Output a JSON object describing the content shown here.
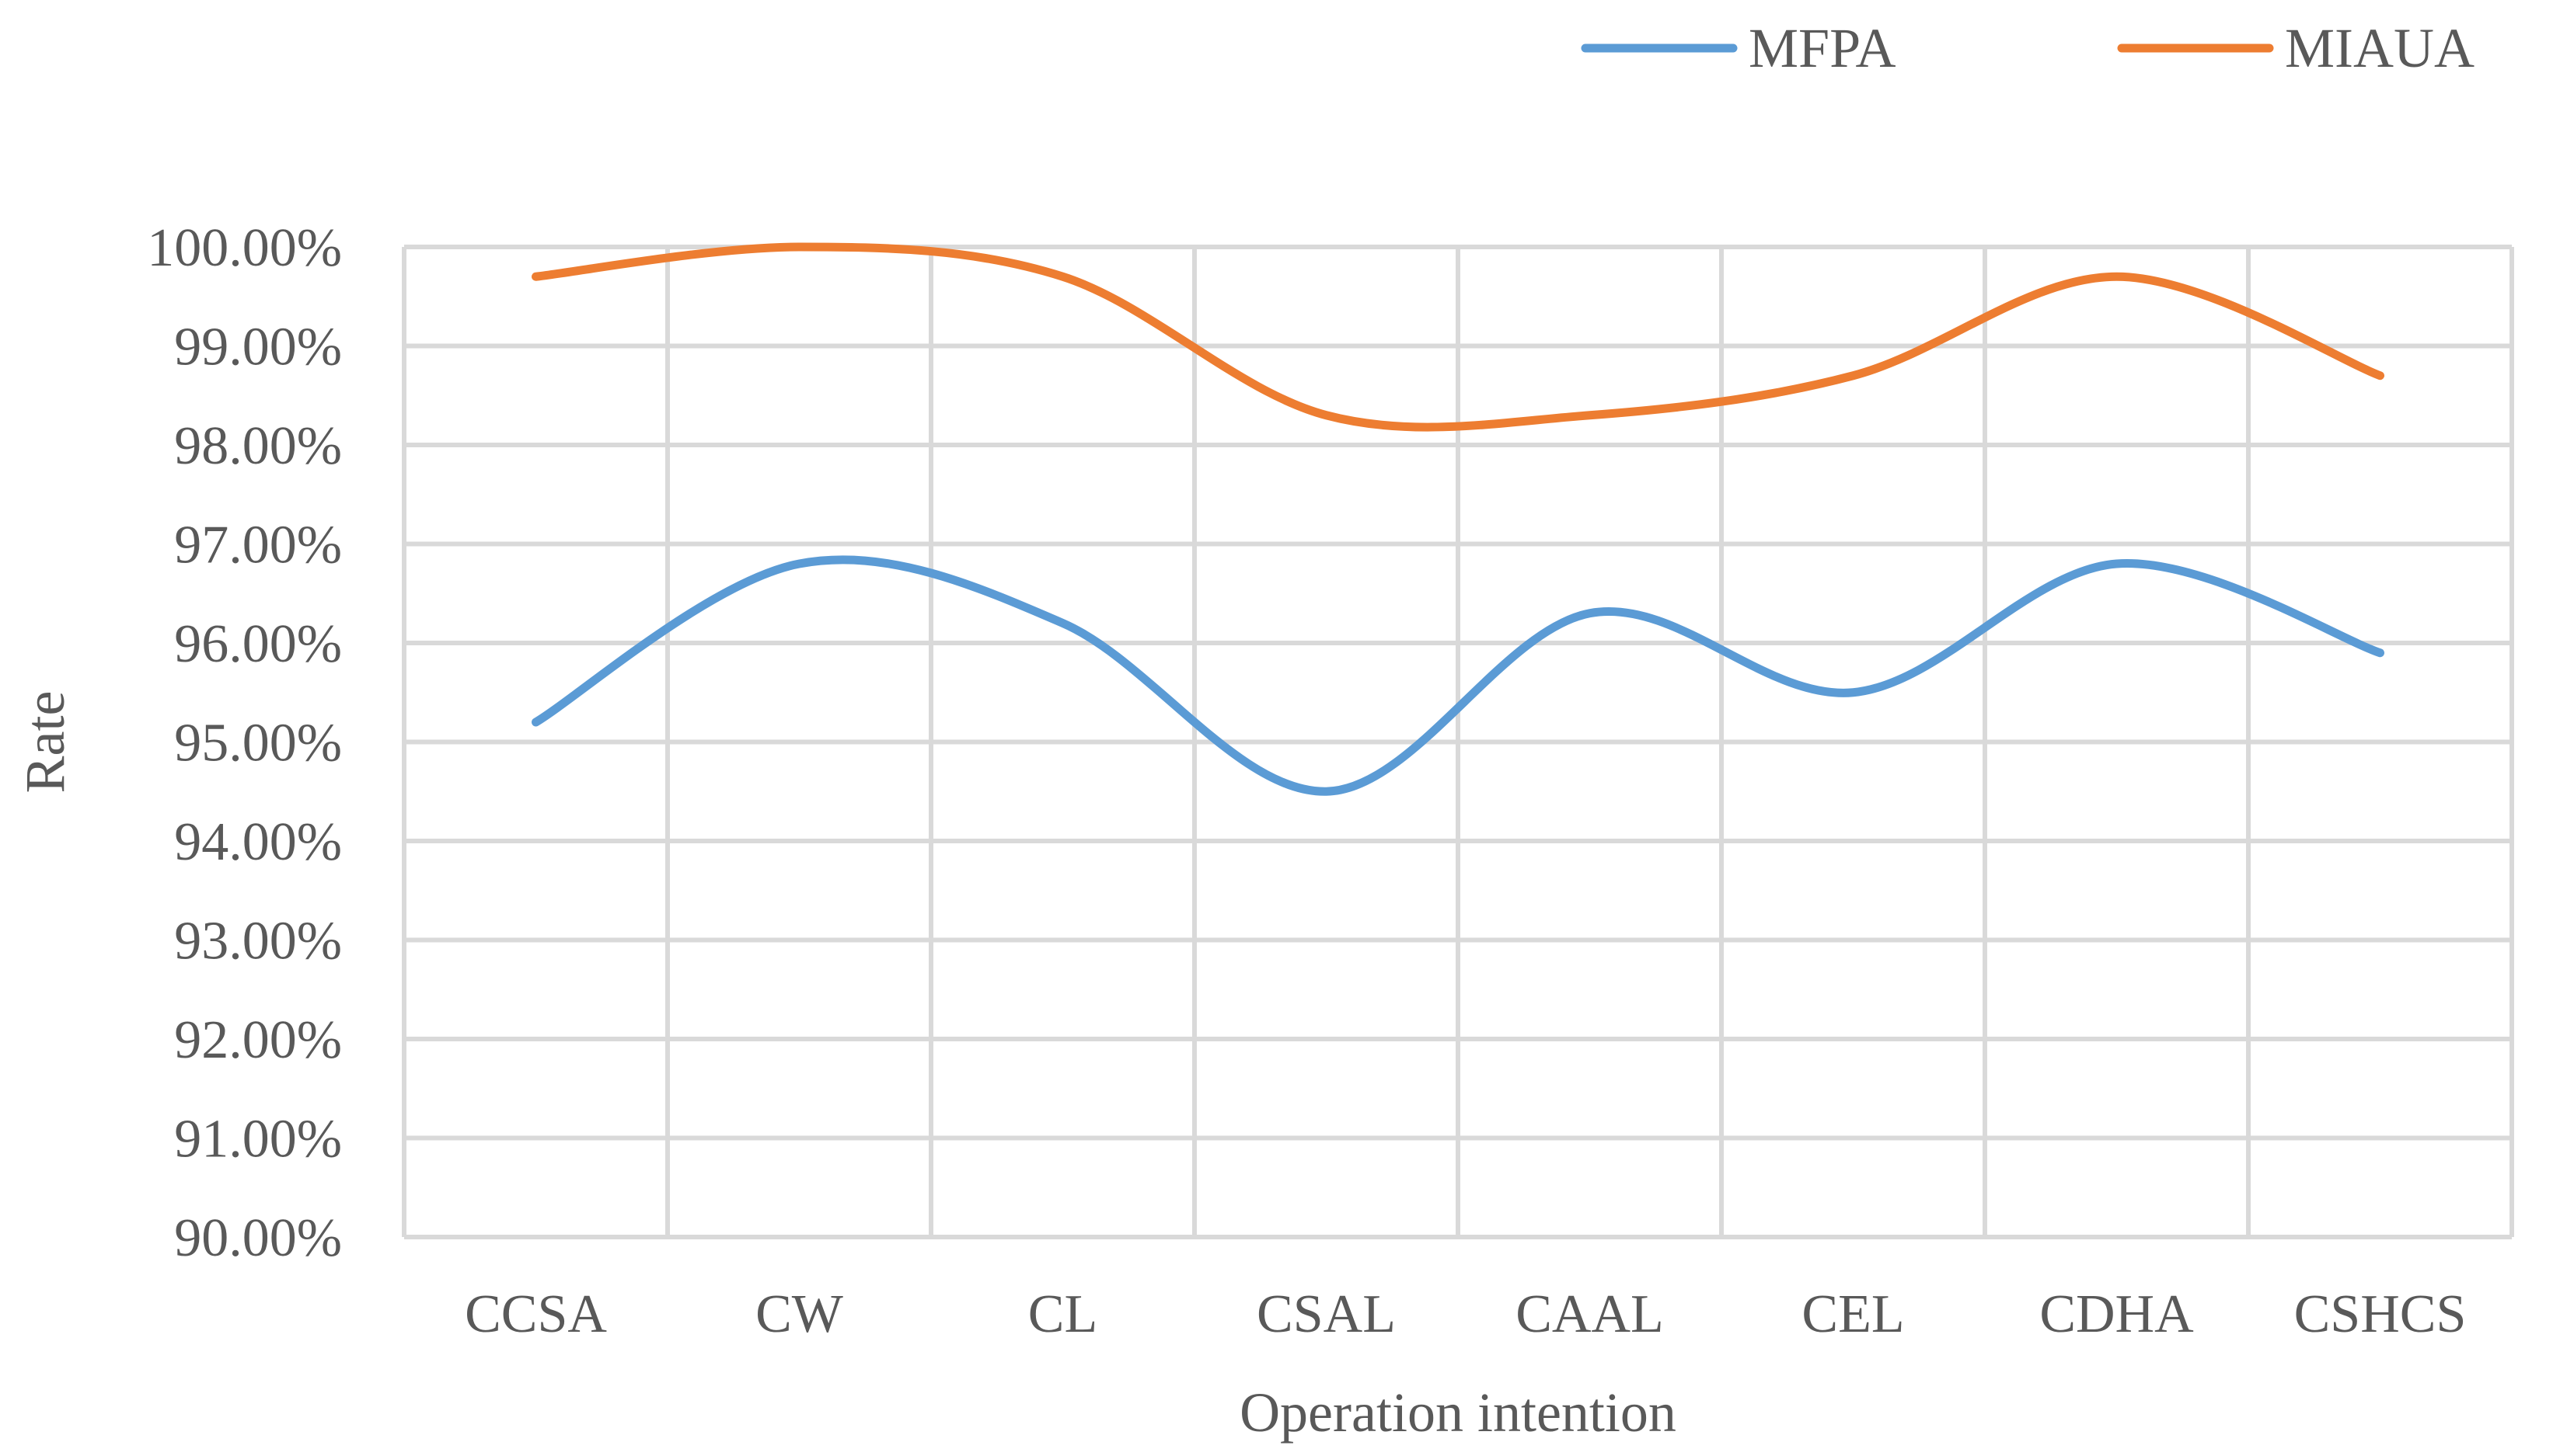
{
  "chart_data": {
    "type": "line",
    "title": "",
    "xlabel": "Operation intention",
    "ylabel": "Rate",
    "categories": [
      "CCSA",
      "CW",
      "CL",
      "CSAL",
      "CAAL",
      "CEL",
      "CDHA",
      "CSHCS"
    ],
    "ylim": [
      90.0,
      100.0
    ],
    "y_ticks": [
      "90.00%",
      "91.00%",
      "92.00%",
      "93.00%",
      "94.00%",
      "95.00%",
      "96.00%",
      "97.00%",
      "98.00%",
      "99.00%",
      "100.00%"
    ],
    "grid": true,
    "legend_position": "top-right",
    "smooth": true,
    "series": [
      {
        "name": "MFPA",
        "color": "#5B9BD5",
        "values": [
          95.2,
          96.8,
          96.2,
          94.5,
          96.3,
          95.5,
          96.8,
          95.9
        ]
      },
      {
        "name": "MIAUA",
        "color": "#ED7D31",
        "values": [
          99.7,
          100.0,
          99.7,
          98.3,
          98.3,
          98.7,
          99.7,
          98.7
        ]
      }
    ]
  }
}
